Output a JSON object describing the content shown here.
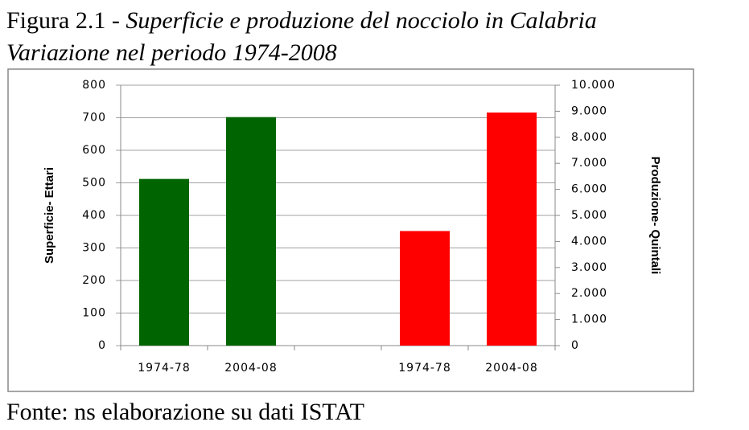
{
  "chart_data": {
    "type": "bar",
    "title": [
      "Figura 2.1 -",
      "Superficie e produzione del nocciolo in Calabria"
    ],
    "subtitle": "Variazione nel periodo 1974-2008",
    "ylabel": "Superficie- Ettari",
    "y2label": "Produzione- Quintali",
    "source": "Fonte: ns elaborazione su dati ISTAT",
    "categories": [
      "1974-78",
      "2004-08",
      null,
      "1974-78",
      "2004-08"
    ],
    "series": [
      {
        "color": "#006400",
        "values": [
          512,
          702,
          null,
          null,
          null
        ]
      },
      {
        "color": "#ff0000",
        "axis": "y2",
        "values": [
          null,
          null,
          null,
          4400,
          8950
        ]
      }
    ],
    "ylim": [
      0,
      800
    ],
    "yticks": [
      0,
      100,
      200,
      300,
      400,
      500,
      600,
      700,
      800
    ],
    "y2lim": [
      0,
      10000
    ],
    "y2ticks": [
      0,
      {
        "value": 1000,
        "label": "1.000"
      },
      {
        "value": 2000,
        "label": "2.000"
      },
      {
        "value": 3000,
        "label": "3.000"
      },
      {
        "value": 4000,
        "label": "4.000"
      },
      {
        "value": 5000,
        "label": "5.000"
      },
      {
        "value": 6000,
        "label": "6.000"
      },
      {
        "value": 7000,
        "label": "7.000"
      },
      {
        "value": 8000,
        "label": "8.000"
      },
      {
        "value": 9000,
        "label": "9.000"
      },
      {
        "value": 10000,
        "label": "10.000"
      }
    ],
    "grid": true
  }
}
